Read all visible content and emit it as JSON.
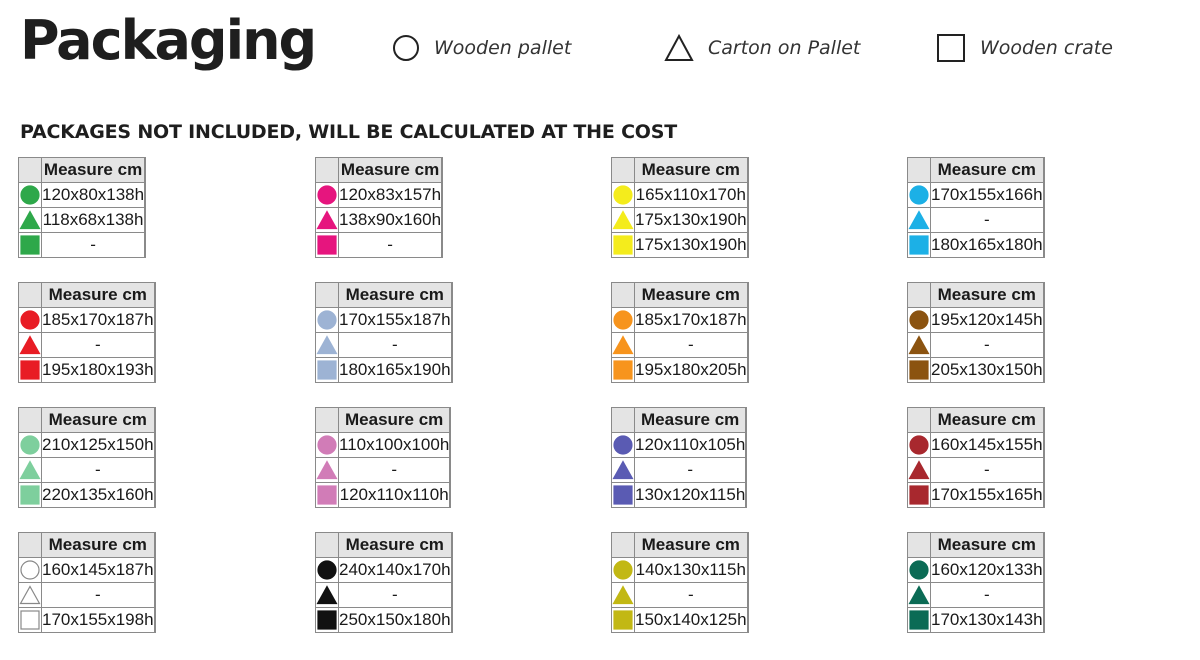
{
  "title": "Packaging",
  "legend": [
    {
      "shape": "circle",
      "label": "Wooden pallet"
    },
    {
      "shape": "triangle",
      "label": "Carton on Pallet"
    },
    {
      "shape": "square",
      "label": "Wooden crate"
    }
  ],
  "subtitle": "PACKAGES NOT INCLUDED, WILL BE CALCULATED AT THE COST",
  "header_label": "Measure cm",
  "tables": [
    {
      "color": "#2ea84a",
      "rows": [
        "120x80x138h",
        "118x68x138h",
        "-"
      ]
    },
    {
      "color": "#e6157e",
      "rows": [
        "120x83x157h",
        "138x90x160h",
        "-"
      ]
    },
    {
      "color": "#f4ec1c",
      "rows": [
        "165x110x170h",
        "175x130x190h",
        "175x130x190h"
      ]
    },
    {
      "color": "#1cb0e6",
      "rows": [
        "170x155x166h",
        "-",
        "180x165x180h"
      ]
    },
    {
      "color": "#e81c24",
      "rows": [
        "185x170x187h",
        "-",
        "195x180x193h"
      ]
    },
    {
      "color": "#9db3d4",
      "rows": [
        "170x155x187h",
        "-",
        "180x165x190h"
      ]
    },
    {
      "color": "#f7941d",
      "rows": [
        "185x170x187h",
        "-",
        "195x180x205h"
      ]
    },
    {
      "color": "#8b5310",
      "rows": [
        "195x120x145h",
        "-",
        "205x130x150h"
      ]
    },
    {
      "color": "#7ecf9d",
      "rows": [
        "210x125x150h",
        "-",
        "220x135x160h"
      ]
    },
    {
      "color": "#d17cb7",
      "rows": [
        "110x100x100h",
        "-",
        "120x110x110h"
      ]
    },
    {
      "color": "#5a5bb3",
      "rows": [
        "120x110x105h",
        "-",
        "130x120x115h"
      ]
    },
    {
      "color": "#a8282e",
      "rows": [
        "160x145x155h",
        "-",
        "170x155x165h"
      ]
    },
    {
      "color": "#ffffff",
      "rows": [
        "160x145x187h",
        "-",
        "170x155x198h"
      ]
    },
    {
      "color": "#111111",
      "rows": [
        "240x140x170h",
        "-",
        "250x150x180h"
      ]
    },
    {
      "color": "#c2b814",
      "rows": [
        "140x130x115h",
        "-",
        "150x140x125h"
      ]
    },
    {
      "color": "#0b6b55",
      "rows": [
        "160x120x133h",
        "-",
        "170x130x143h"
      ]
    }
  ]
}
